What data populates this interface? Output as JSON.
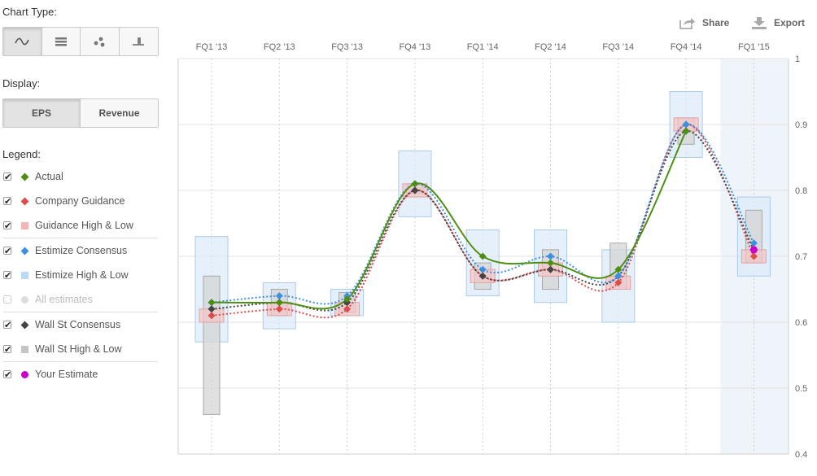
{
  "sidebar": {
    "chart_type_label": "Chart Type:",
    "chart_type_icons": [
      "smooth-line-icon",
      "table-icon",
      "scatter-icon",
      "step-line-icon"
    ],
    "display_label": "Display:",
    "display_options": [
      "EPS",
      "Revenue"
    ],
    "legend_label": "Legend:",
    "legend": [
      {
        "label": "Actual",
        "color": "#4e8f13",
        "shape": "diamond",
        "checked": true
      },
      {
        "label": "Company Guidance",
        "color": "#de4b4b",
        "shape": "diamond",
        "checked": true
      },
      {
        "label": "Guidance High & Low",
        "color": "#f3b6b6",
        "shape": "square",
        "checked": true
      },
      {
        "label": "Estimize Consensus",
        "color": "#3d8fe0",
        "shape": "diamond",
        "checked": true
      },
      {
        "label": "Estimize High & Low",
        "color": "#bcd8f2",
        "shape": "square",
        "checked": true
      },
      {
        "label": "All estimates",
        "color": "#dddddd",
        "shape": "circle",
        "checked": false
      },
      {
        "label": "Wall St Consensus",
        "color": "#444444",
        "shape": "diamond",
        "checked": true
      },
      {
        "label": "Wall St High & Low",
        "color": "#c4c4c4",
        "shape": "square",
        "checked": true
      },
      {
        "label": "Your Estimate",
        "color": "#cc00cc",
        "shape": "circle",
        "checked": true
      }
    ]
  },
  "toolbar": {
    "share_label": "Share",
    "export_label": "Export"
  },
  "chart_data": {
    "type": "line",
    "categories": [
      "FQ1 '13",
      "FQ2 '13",
      "FQ3 '13",
      "FQ4 '13",
      "FQ1 '14",
      "FQ2 '14",
      "FQ3 '14",
      "FQ4 '14",
      "FQ1 '15"
    ],
    "ylim": [
      0.4,
      1.0
    ],
    "yticks": [
      "0.4",
      "0.5",
      "0.6",
      "0.7",
      "0.8",
      "0.9",
      "1"
    ],
    "grid": true,
    "highlighted_category": "FQ1 '15",
    "series": [
      {
        "name": "Actual",
        "color": "#4e8f13",
        "style": "solid",
        "values": [
          0.63,
          0.63,
          0.635,
          0.81,
          0.7,
          0.69,
          0.68,
          0.89,
          null
        ]
      },
      {
        "name": "Company Guidance",
        "color": "#de4b4b",
        "style": "dotted",
        "values": [
          0.61,
          0.62,
          0.62,
          0.8,
          0.67,
          0.68,
          0.66,
          0.9,
          0.7
        ]
      },
      {
        "name": "Estimize Consensus",
        "color": "#3d8fe0",
        "style": "dotted",
        "values": [
          0.63,
          0.64,
          0.64,
          0.81,
          0.68,
          0.7,
          0.67,
          0.9,
          0.72
        ]
      },
      {
        "name": "Wall St Consensus",
        "color": "#444444",
        "style": "dotted",
        "values": [
          0.62,
          0.63,
          0.63,
          0.8,
          0.67,
          0.68,
          0.67,
          0.89,
          0.71
        ]
      }
    ],
    "ranges": [
      {
        "name": "Estimize High & Low",
        "color": "#bcd8f2",
        "low": [
          0.57,
          0.59,
          0.61,
          0.76,
          0.64,
          0.63,
          0.6,
          0.85,
          0.67
        ],
        "high": [
          0.73,
          0.66,
          0.65,
          0.86,
          0.74,
          0.74,
          0.71,
          0.95,
          0.79
        ]
      },
      {
        "name": "Wall St High & Low",
        "color": "#c4c4c4",
        "low": [
          0.46,
          0.61,
          0.615,
          0.795,
          0.65,
          0.65,
          0.65,
          0.87,
          0.69
        ],
        "high": [
          0.67,
          0.65,
          0.645,
          0.81,
          0.69,
          0.71,
          0.72,
          0.91,
          0.77
        ]
      },
      {
        "name": "Guidance High & Low",
        "color": "#f3b6b6",
        "low": [
          0.6,
          0.61,
          0.61,
          0.79,
          0.66,
          0.67,
          0.65,
          0.89,
          0.69
        ],
        "high": [
          0.62,
          0.63,
          0.63,
          0.81,
          0.68,
          0.69,
          0.67,
          0.91,
          0.71
        ]
      }
    ],
    "your_estimate": {
      "name": "Your Estimate",
      "color": "#cc00cc",
      "category": "FQ1 '15",
      "value": 0.71
    }
  }
}
